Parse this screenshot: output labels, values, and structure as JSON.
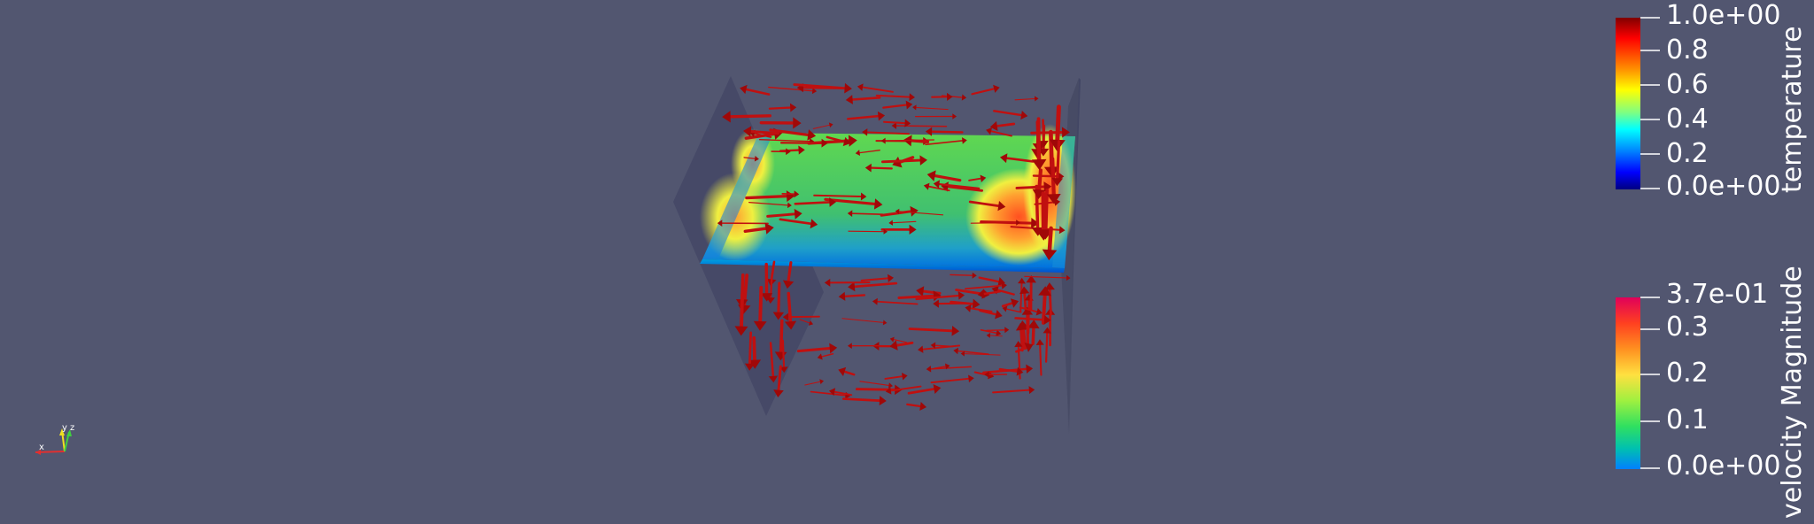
{
  "temperature_legend": {
    "title": "temperature",
    "ticks": [
      "1.0e+00",
      "0.8",
      "0.6",
      "0.4",
      "0.2",
      "0.0e+00"
    ],
    "colormap": [
      "#800000",
      "#ff0000",
      "#ff8000",
      "#ffff00",
      "#80ff80",
      "#00ffff",
      "#0080ff",
      "#0000ff",
      "#000080"
    ]
  },
  "velocity_legend": {
    "title": "velocity Magnitude",
    "ticks": [
      "3.7e-01",
      "0.3",
      "0.2",
      "0.1",
      "0.0e+00"
    ],
    "colormap": [
      "#e0005a",
      "#ff4020",
      "#ff9020",
      "#ffe040",
      "#a0f040",
      "#30e060",
      "#00c0b0",
      "#0080ff"
    ]
  },
  "orientation_axes": {
    "x_label": "x",
    "y_label": "y",
    "z_label": "z",
    "x_color": "#e03030",
    "y_color": "#f0e020",
    "z_color": "#40d040"
  },
  "scene": {
    "background": "#525670",
    "arrow_color": "#c01010"
  }
}
